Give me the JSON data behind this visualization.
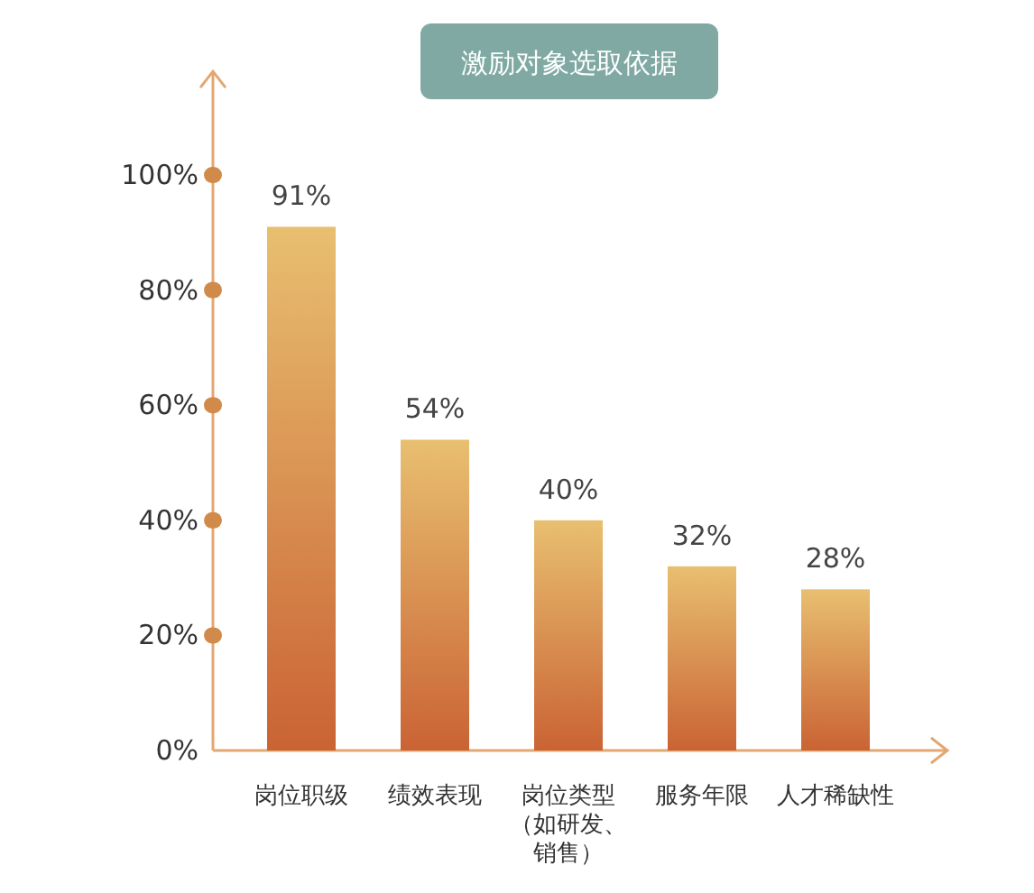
{
  "chart_data": {
    "type": "bar",
    "title": "激励对象选取依据",
    "categories": [
      "岗位职级",
      "绩效表现",
      "岗位类型（如研发、销售）",
      "服务年限",
      "人才稀缺性"
    ],
    "values": [
      91,
      54,
      40,
      32,
      28
    ],
    "value_labels": [
      "91%",
      "54%",
      "40%",
      "32%",
      "28%"
    ],
    "color": "#d99552",
    "ylim": [
      0,
      118
    ],
    "yticks": [
      {
        "value": 0,
        "label": "0%"
      },
      {
        "value": 20,
        "label": "20%"
      },
      {
        "value": 40,
        "label": "40%"
      },
      {
        "value": 60,
        "label": "60%"
      },
      {
        "value": 80,
        "label": "80%"
      },
      {
        "value": 100,
        "label": "100%"
      }
    ]
  }
}
